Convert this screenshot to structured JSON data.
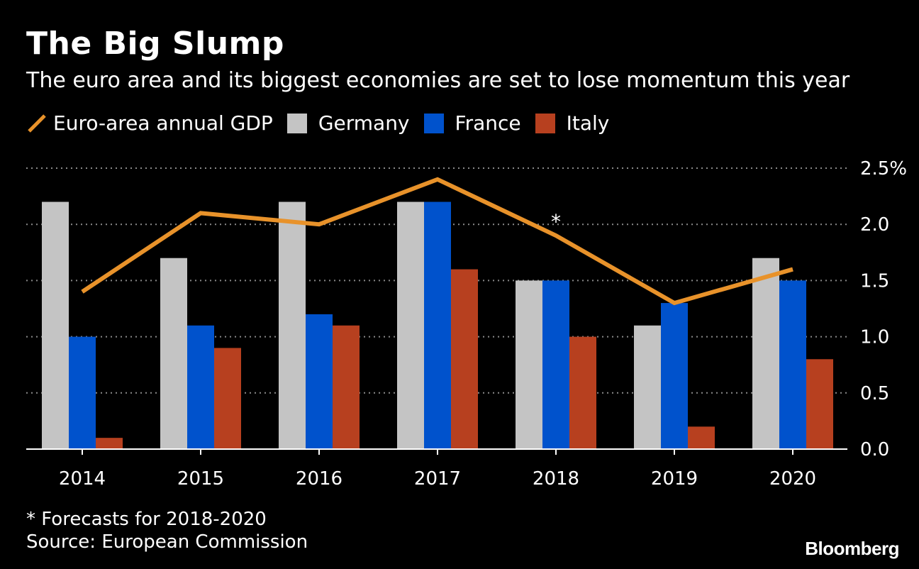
{
  "header": {
    "title": "The Big Slump",
    "subtitle": "The euro area and its biggest economies are set to lose momentum this year"
  },
  "legend": {
    "items": [
      {
        "label": "Euro-area annual GDP",
        "color": "#e8922a",
        "kind": "line"
      },
      {
        "label": "Germany",
        "color": "#c4c4c4",
        "kind": "bar"
      },
      {
        "label": "France",
        "color": "#0052cc",
        "kind": "bar"
      },
      {
        "label": "Italy",
        "color": "#b7401f",
        "kind": "bar"
      }
    ]
  },
  "footer": {
    "footnote": "* Forecasts for 2018-2020",
    "source": "Source: European Commission",
    "brand": "Bloomberg"
  },
  "chart_data": {
    "type": "bar",
    "title": "The Big Slump",
    "subtitle": "The euro area and its biggest economies are set to lose momentum this year",
    "categories": [
      "2014",
      "2015",
      "2016",
      "2017",
      "2018",
      "2019",
      "2020"
    ],
    "series": [
      {
        "name": "Germany",
        "type": "bar",
        "color": "#c4c4c4",
        "values": [
          2.2,
          1.7,
          2.2,
          2.2,
          1.5,
          1.1,
          1.7
        ]
      },
      {
        "name": "France",
        "type": "bar",
        "color": "#0052cc",
        "values": [
          1.0,
          1.1,
          1.2,
          2.2,
          1.5,
          1.3,
          1.5
        ]
      },
      {
        "name": "Italy",
        "type": "bar",
        "color": "#b7401f",
        "values": [
          0.1,
          0.9,
          1.1,
          1.6,
          1.0,
          0.2,
          0.8
        ]
      },
      {
        "name": "Euro-area annual GDP",
        "type": "line",
        "color": "#e8922a",
        "values": [
          1.4,
          2.1,
          2.0,
          2.4,
          1.9,
          1.3,
          1.6
        ]
      }
    ],
    "ylim": [
      0,
      2.5
    ],
    "yticks": [
      0.0,
      0.5,
      1.0,
      1.5,
      2.0,
      2.5
    ],
    "ytick_labels": [
      "0.0",
      "0.5",
      "1.0",
      "1.5",
      "2.0",
      "2.5%"
    ],
    "yaxis_side": "right",
    "grid": true,
    "legend_position": "top-left",
    "annotations": [
      {
        "text": "*",
        "x": "2018"
      }
    ]
  }
}
